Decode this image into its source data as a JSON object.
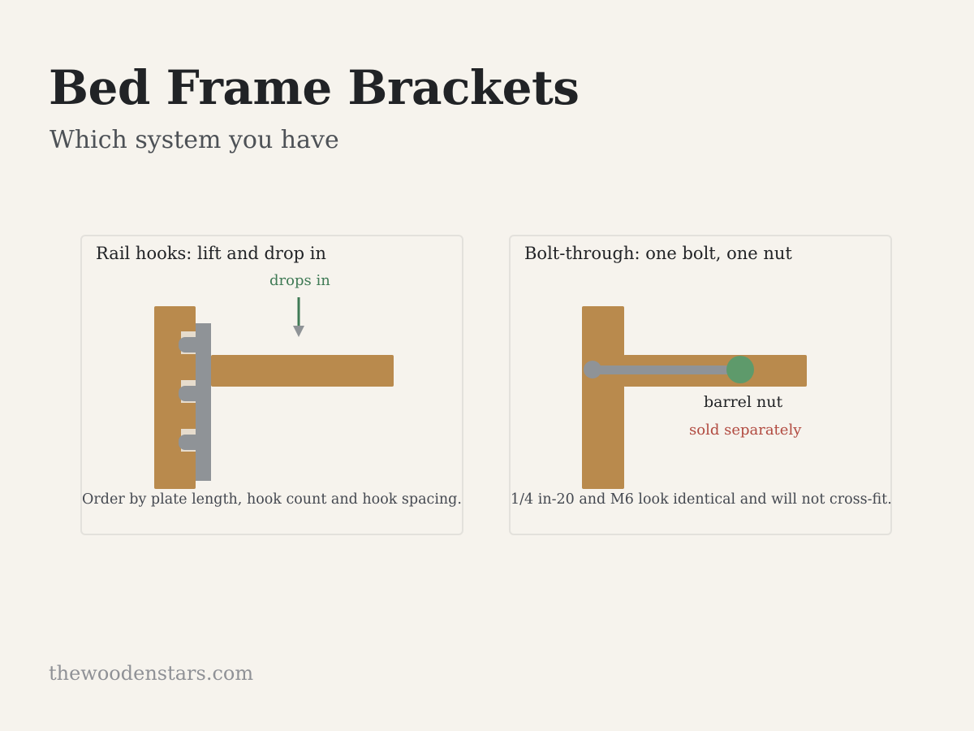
{
  "header": {
    "title": "Bed Frame Brackets",
    "subtitle": "Which system you have"
  },
  "panels": {
    "rail_hooks": {
      "heading": "Rail hooks: lift and drop in",
      "arrow_label": "drops in",
      "note": "Order by plate length, hook count and hook spacing.",
      "hook_count": 3
    },
    "bolt_through": {
      "heading": "Bolt-through: one bolt, one nut",
      "nut_label": "barrel nut",
      "nut_note": "sold separately",
      "note": "1/4 in-20 and M6 look identical and will not cross-fit."
    }
  },
  "colors": {
    "background": "#f6f3ed",
    "wood": "#b98a4d",
    "steel": "#8f9397",
    "nut": "#5e9a6b",
    "arrow": "#3f7a55",
    "warning": "#b14a40"
  },
  "footer": {
    "site": "thewoodenstars.com"
  }
}
